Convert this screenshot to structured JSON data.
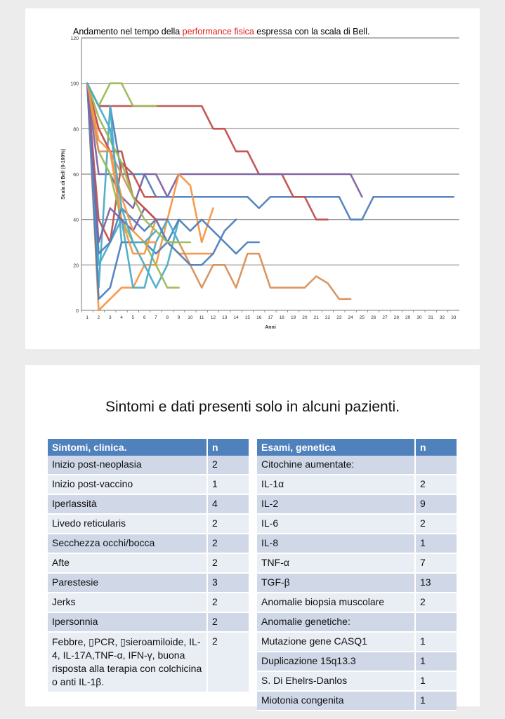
{
  "chart_slide": {
    "title_before": "Andamento nel tempo della ",
    "title_highlight": "performance fisica",
    "title_after": " espressa con la scala di Bell."
  },
  "chart_data": {
    "type": "line",
    "xlabel": "Anni",
    "ylabel": "Scala di Bell (0-100%)",
    "xlim": [
      1,
      33
    ],
    "ylim": [
      0,
      120
    ],
    "yticks": [
      0,
      20,
      40,
      60,
      80,
      100,
      120
    ],
    "xticks": [
      1,
      2,
      3,
      4,
      5,
      6,
      7,
      8,
      9,
      10,
      11,
      12,
      13,
      14,
      15,
      16,
      17,
      18,
      19,
      20,
      21,
      22,
      23,
      24,
      25,
      26,
      27,
      28,
      29,
      30,
      31,
      32,
      33
    ],
    "grid": "horizontal",
    "series": [
      {
        "color": "#4f81bd",
        "points": [
          [
            1,
            100
          ],
          [
            2,
            90
          ],
          [
            3,
            90
          ],
          [
            4,
            60
          ],
          [
            5,
            60
          ],
          [
            6,
            60
          ],
          [
            7,
            50
          ],
          [
            8,
            50
          ],
          [
            9,
            50
          ],
          [
            10,
            50
          ],
          [
            11,
            50
          ],
          [
            12,
            50
          ],
          [
            13,
            50
          ],
          [
            14,
            50
          ],
          [
            15,
            50
          ],
          [
            16,
            45
          ],
          [
            17,
            50
          ],
          [
            18,
            50
          ],
          [
            19,
            50
          ],
          [
            20,
            50
          ],
          [
            21,
            50
          ],
          [
            22,
            50
          ],
          [
            23,
            50
          ],
          [
            24,
            40
          ],
          [
            25,
            40
          ],
          [
            26,
            50
          ],
          [
            27,
            50
          ],
          [
            28,
            50
          ],
          [
            29,
            50
          ],
          [
            30,
            50
          ],
          [
            31,
            50
          ],
          [
            32,
            50
          ],
          [
            33,
            50
          ]
        ]
      },
      {
        "color": "#c0504d",
        "points": [
          [
            1,
            100
          ],
          [
            2,
            90
          ],
          [
            3,
            90
          ],
          [
            4,
            90
          ],
          [
            5,
            90
          ],
          [
            6,
            90
          ],
          [
            7,
            90
          ],
          [
            8,
            90
          ],
          [
            9,
            90
          ],
          [
            10,
            90
          ],
          [
            11,
            90
          ],
          [
            12,
            80
          ],
          [
            13,
            80
          ],
          [
            14,
            70
          ],
          [
            15,
            70
          ],
          [
            16,
            60
          ],
          [
            17,
            60
          ],
          [
            18,
            60
          ],
          [
            19,
            50
          ],
          [
            20,
            50
          ],
          [
            21,
            40
          ],
          [
            22,
            40
          ]
        ]
      },
      {
        "color": "#8064a2",
        "points": [
          [
            1,
            100
          ],
          [
            2,
            60
          ],
          [
            3,
            60
          ],
          [
            4,
            50
          ],
          [
            5,
            45
          ],
          [
            6,
            60
          ],
          [
            7,
            60
          ],
          [
            8,
            50
          ],
          [
            9,
            60
          ],
          [
            10,
            60
          ],
          [
            11,
            60
          ],
          [
            12,
            60
          ],
          [
            13,
            60
          ],
          [
            14,
            60
          ],
          [
            15,
            60
          ],
          [
            16,
            60
          ],
          [
            17,
            60
          ],
          [
            18,
            60
          ],
          [
            19,
            60
          ],
          [
            20,
            60
          ],
          [
            21,
            60
          ],
          [
            22,
            60
          ],
          [
            23,
            60
          ],
          [
            24,
            60
          ],
          [
            25,
            50
          ]
        ]
      },
      {
        "color": "#9bbb59",
        "points": [
          [
            1,
            100
          ],
          [
            2,
            90
          ],
          [
            3,
            100
          ],
          [
            4,
            100
          ],
          [
            5,
            90
          ],
          [
            6,
            90
          ],
          [
            7,
            90
          ]
        ]
      },
      {
        "color": "#f79646",
        "points": [
          [
            1,
            100
          ],
          [
            2,
            0
          ],
          [
            3,
            5
          ],
          [
            4,
            10
          ],
          [
            5,
            10
          ],
          [
            6,
            20
          ],
          [
            7,
            20
          ],
          [
            8,
            40
          ],
          [
            9,
            60
          ],
          [
            10,
            55
          ],
          [
            11,
            30
          ],
          [
            12,
            45
          ]
        ]
      },
      {
        "color": "#4bacc6",
        "points": [
          [
            1,
            100
          ],
          [
            2,
            10
          ],
          [
            3,
            90
          ],
          [
            4,
            30
          ],
          [
            5,
            30
          ],
          [
            6,
            20
          ],
          [
            7,
            10
          ],
          [
            8,
            20
          ],
          [
            9,
            40
          ]
        ]
      },
      {
        "color": "#4f81bd",
        "points": [
          [
            1,
            100
          ],
          [
            2,
            5
          ],
          [
            3,
            10
          ],
          [
            4,
            30
          ],
          [
            5,
            30
          ],
          [
            6,
            30
          ],
          [
            7,
            25
          ],
          [
            8,
            30
          ],
          [
            9,
            40
          ],
          [
            10,
            35
          ],
          [
            11,
            40
          ],
          [
            12,
            35
          ],
          [
            13,
            30
          ],
          [
            14,
            25
          ],
          [
            15,
            30
          ],
          [
            16,
            30
          ]
        ]
      },
      {
        "color": "#c0504d",
        "points": [
          [
            1,
            100
          ],
          [
            2,
            40
          ],
          [
            3,
            30
          ],
          [
            4,
            65
          ],
          [
            5,
            60
          ],
          [
            6,
            50
          ],
          [
            7,
            50
          ]
        ]
      },
      {
        "color": "#9bbb59",
        "points": [
          [
            1,
            100
          ],
          [
            2,
            70
          ],
          [
            3,
            60
          ],
          [
            4,
            40
          ],
          [
            5,
            30
          ],
          [
            6,
            30
          ],
          [
            7,
            20
          ],
          [
            8,
            10
          ],
          [
            9,
            10
          ]
        ]
      },
      {
        "color": "#f79646",
        "points": [
          [
            1,
            100
          ],
          [
            2,
            80
          ],
          [
            3,
            70
          ],
          [
            4,
            40
          ],
          [
            5,
            25
          ],
          [
            6,
            25
          ],
          [
            7,
            40
          ],
          [
            8,
            30
          ],
          [
            9,
            25
          ],
          [
            10,
            25
          ],
          [
            11,
            25
          ],
          [
            12,
            25
          ]
        ]
      },
      {
        "color": "#d9905a",
        "points": [
          [
            1,
            100
          ],
          [
            2,
            70
          ],
          [
            3,
            70
          ],
          [
            4,
            60
          ],
          [
            5,
            50
          ],
          [
            6,
            45
          ],
          [
            7,
            40
          ],
          [
            8,
            30
          ],
          [
            9,
            30
          ],
          [
            10,
            20
          ],
          [
            11,
            10
          ],
          [
            12,
            20
          ],
          [
            13,
            20
          ],
          [
            14,
            10
          ],
          [
            15,
            25
          ],
          [
            16,
            25
          ],
          [
            17,
            10
          ],
          [
            18,
            10
          ],
          [
            19,
            10
          ],
          [
            20,
            10
          ],
          [
            21,
            15
          ],
          [
            22,
            12
          ],
          [
            23,
            5
          ],
          [
            24,
            5
          ]
        ]
      },
      {
        "color": "#4bacc6",
        "points": [
          [
            1,
            100
          ],
          [
            2,
            20
          ],
          [
            3,
            30
          ],
          [
            4,
            40
          ],
          [
            5,
            10
          ],
          [
            6,
            10
          ],
          [
            7,
            30
          ],
          [
            8,
            40
          ],
          [
            9,
            30
          ]
        ]
      },
      {
        "color": "#4f81bd",
        "points": [
          [
            1,
            100
          ],
          [
            2,
            25
          ],
          [
            3,
            30
          ],
          [
            4,
            45
          ],
          [
            5,
            40
          ],
          [
            6,
            35
          ],
          [
            7,
            40
          ],
          [
            8,
            30
          ],
          [
            9,
            25
          ],
          [
            10,
            20
          ],
          [
            11,
            20
          ],
          [
            12,
            25
          ],
          [
            13,
            35
          ],
          [
            14,
            40
          ]
        ]
      },
      {
        "color": "#8064a2",
        "points": [
          [
            1,
            100
          ],
          [
            2,
            30
          ],
          [
            3,
            45
          ],
          [
            4,
            40
          ],
          [
            5,
            35
          ],
          [
            6,
            45
          ],
          [
            7,
            40
          ],
          [
            8,
            40
          ]
        ]
      },
      {
        "color": "#c0504d",
        "points": [
          [
            1,
            100
          ],
          [
            2,
            80
          ],
          [
            3,
            70
          ],
          [
            4,
            70
          ],
          [
            5,
            50
          ],
          [
            6,
            45
          ],
          [
            7,
            40
          ]
        ]
      },
      {
        "color": "#9bbb59",
        "points": [
          [
            1,
            100
          ],
          [
            2,
            85
          ],
          [
            3,
            75
          ],
          [
            4,
            65
          ],
          [
            5,
            50
          ],
          [
            6,
            40
          ],
          [
            7,
            35
          ],
          [
            8,
            30
          ],
          [
            9,
            30
          ],
          [
            10,
            30
          ]
        ]
      },
      {
        "color": "#f79646",
        "points": [
          [
            1,
            100
          ],
          [
            2,
            75
          ],
          [
            3,
            70
          ],
          [
            4,
            50
          ],
          [
            5,
            35
          ],
          [
            6,
            30
          ],
          [
            7,
            30
          ]
        ]
      },
      {
        "color": "#4bacc6",
        "points": [
          [
            1,
            100
          ],
          [
            2,
            90
          ],
          [
            3,
            80
          ],
          [
            4,
            45
          ],
          [
            5,
            30
          ],
          [
            6,
            30
          ],
          [
            7,
            35
          ]
        ]
      }
    ]
  },
  "tables_slide": {
    "title": "Sintomi e dati presenti solo in alcuni pazienti.",
    "left_table": {
      "headers": [
        "Sintomi, clinica.",
        "n"
      ],
      "rows": [
        [
          "Inizio post-neoplasia",
          "2"
        ],
        [
          "Inizio post-vaccino",
          "1"
        ],
        [
          "Iperlassità",
          "4"
        ],
        [
          "Livedo reticularis",
          "2"
        ],
        [
          "Secchezza occhi/bocca",
          "2"
        ],
        [
          "Afte",
          "2"
        ],
        [
          "Parestesie",
          "3"
        ],
        [
          "Jerks",
          "2"
        ],
        [
          "Ipersonnia",
          "2"
        ],
        [
          "Febbre, ▯PCR, ▯sieroamiloide, IL-4, IL-17A,TNF-α, IFN-γ, buona risposta alla terapia con colchicina o anti IL-1β.",
          "2"
        ]
      ]
    },
    "right_table": {
      "headers": [
        "Esami, genetica",
        "n"
      ],
      "rows": [
        [
          "Citochine aumentate:",
          ""
        ],
        [
          "IL-1α",
          "2"
        ],
        [
          "IL-2",
          "9"
        ],
        [
          "IL-6",
          "2"
        ],
        [
          "IL-8",
          "1"
        ],
        [
          "TNF-α",
          "7"
        ],
        [
          "TGF-β",
          "13"
        ],
        [
          "Anomalie biopsia muscolare",
          "2"
        ],
        [
          "Anomalie genetiche:",
          ""
        ],
        [
          "Mutazione gene CASQ1",
          "1"
        ],
        [
          "Duplicazione 15q13.3",
          "1"
        ],
        [
          "S. Di Ehelrs-Danlos",
          "1"
        ],
        [
          "Miotonia congenita",
          "1"
        ]
      ]
    }
  }
}
